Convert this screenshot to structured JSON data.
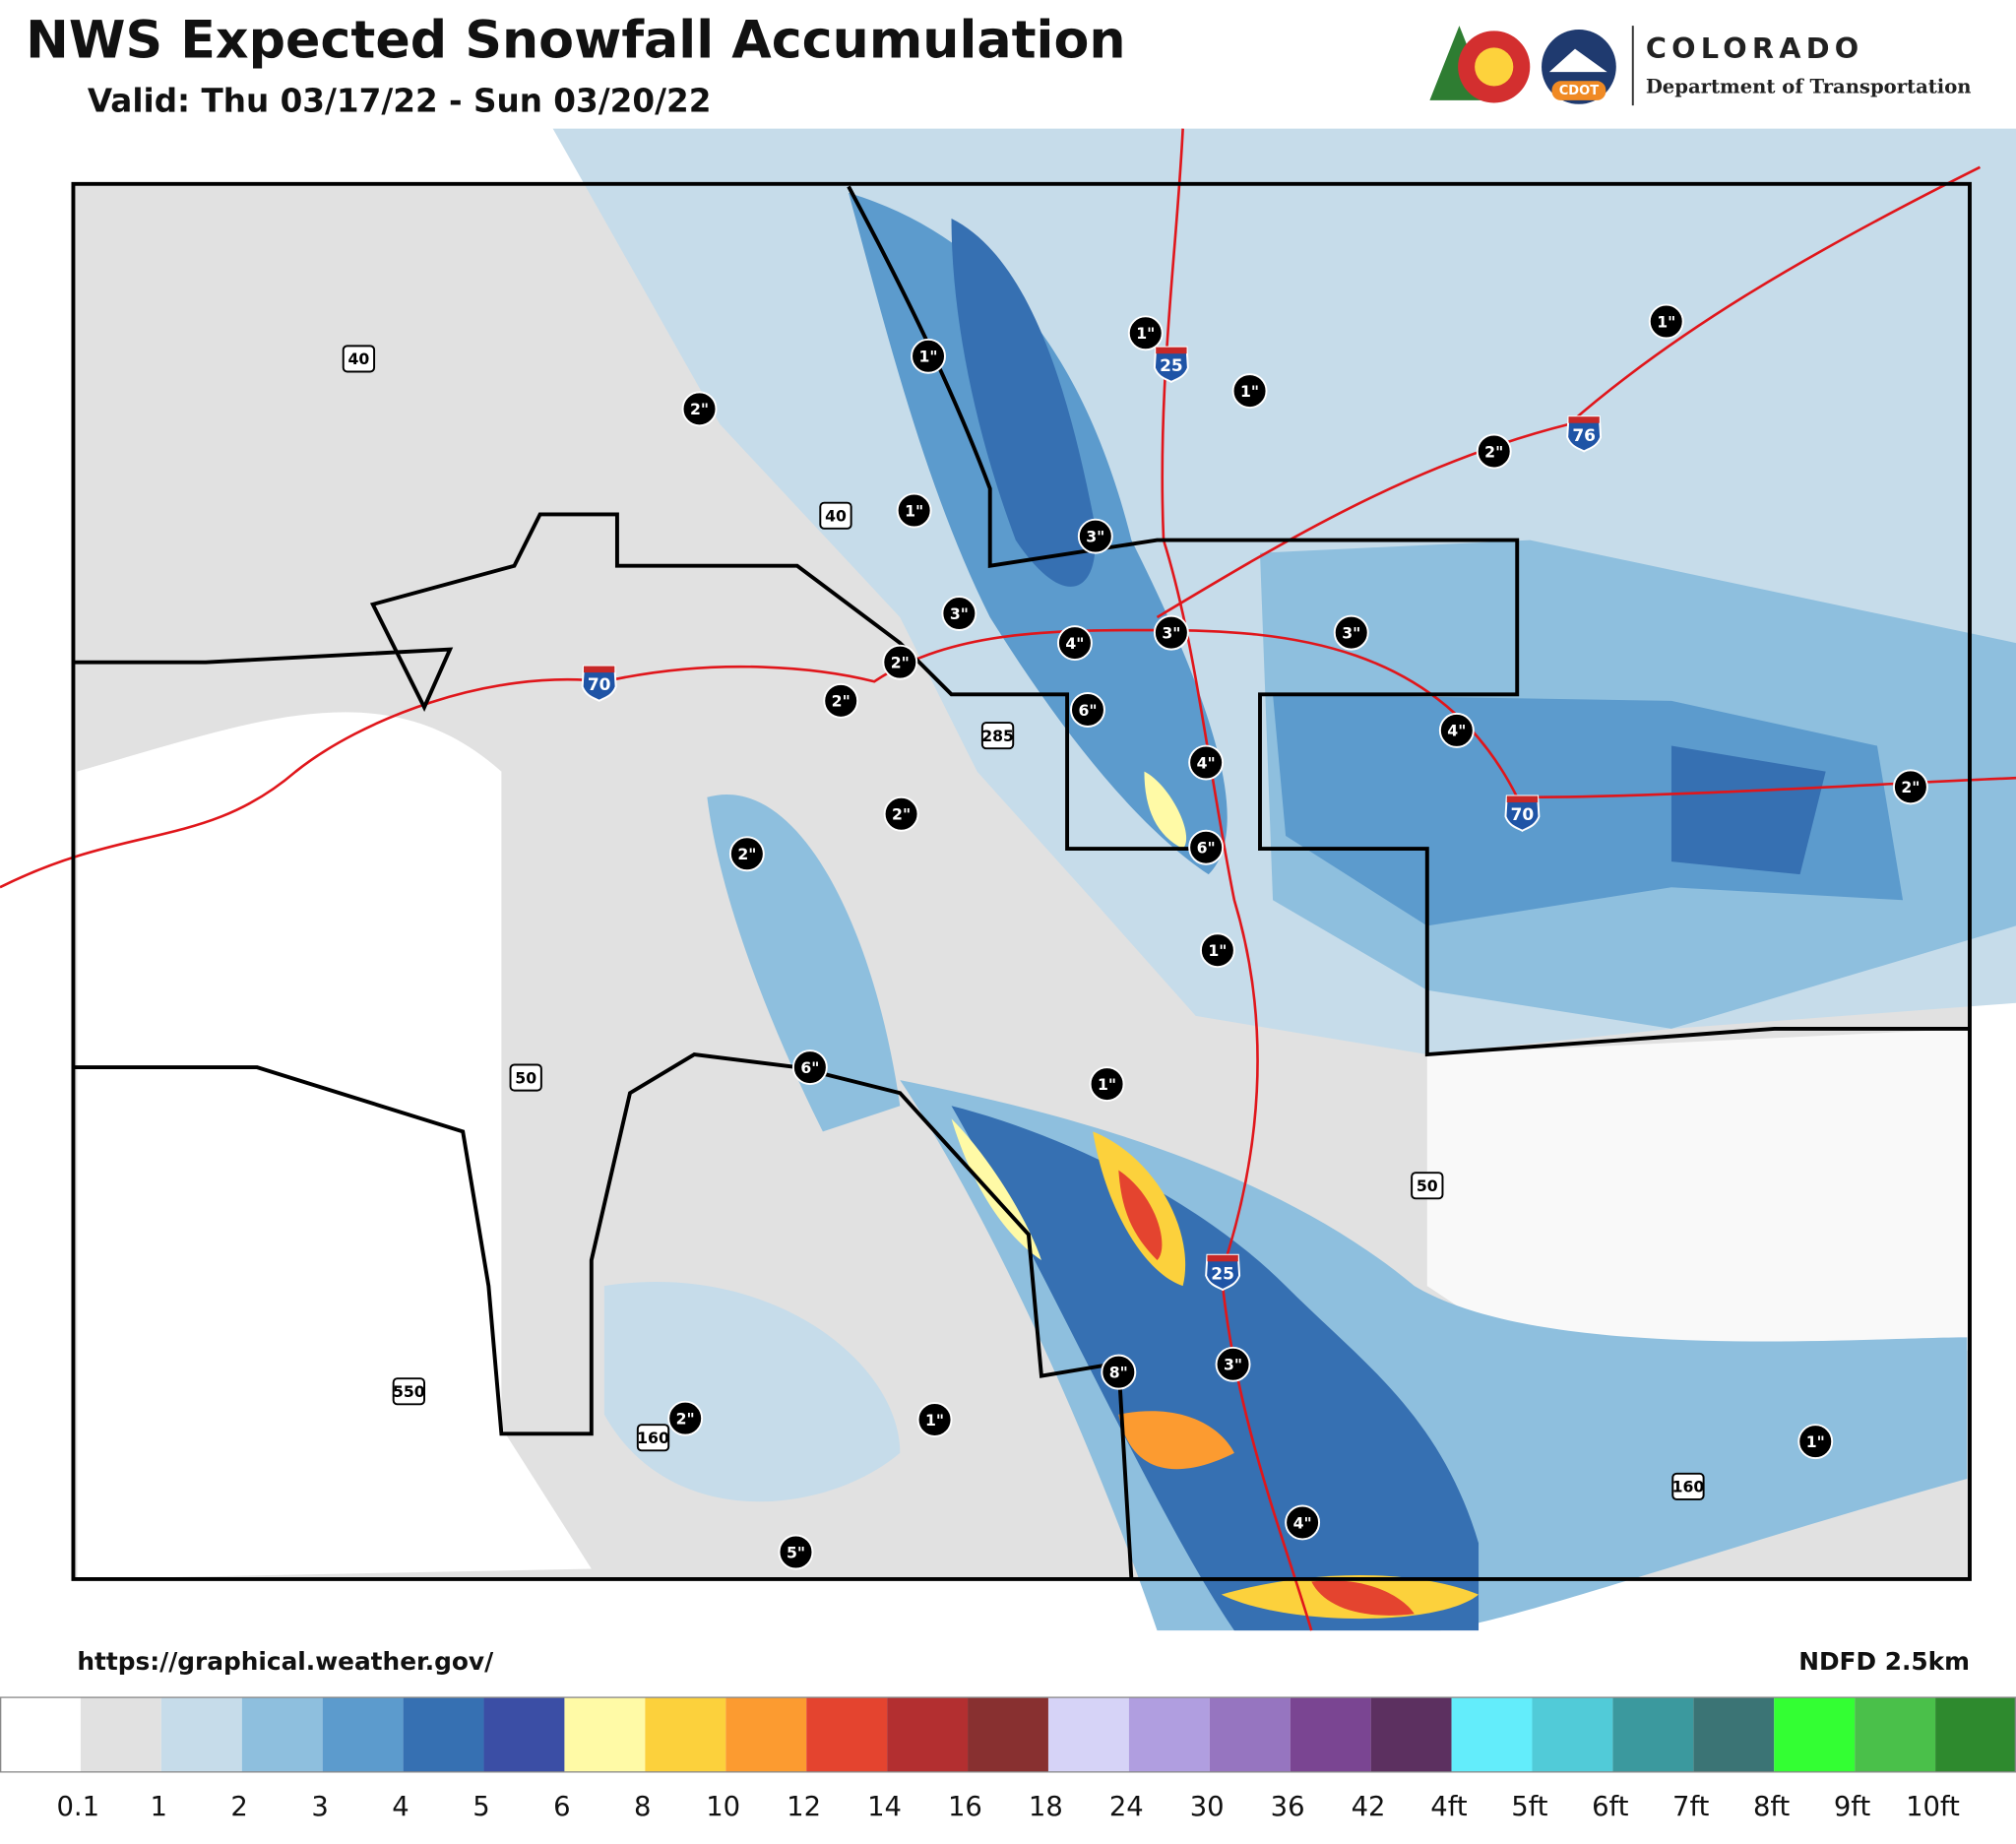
{
  "header": {
    "title": "NWS Expected Snowfall Accumulation",
    "subtitle": "Valid: Thu 03/17/22 - Sun 03/20/22"
  },
  "logo": {
    "name": "COLORADO",
    "department": "Department of Transportation",
    "badge": "CDOT"
  },
  "map": {
    "snow_labels": [
      "1\"",
      "1\"",
      "1\"",
      "1\"",
      "2\"",
      "2\"",
      "1\"",
      "3\"",
      "3\"",
      "4\"",
      "3\"",
      "3\"",
      "2\"",
      "2\"",
      "6\"",
      "4\"",
      "4\"",
      "2\"",
      "2\"",
      "6\"",
      "2\"",
      "1\"",
      "6\"",
      "1\"",
      "8\"",
      "3\"",
      "2\"",
      "1\"",
      "1\"",
      "4\"",
      "5\""
    ],
    "highways": [
      "40",
      "25",
      "76",
      "40",
      "70",
      "285",
      "70",
      "50",
      "50",
      "25",
      "550",
      "160",
      "160"
    ]
  },
  "footer": {
    "source": "https://graphical.weather.gov/",
    "model": "NDFD 2.5km"
  },
  "legend": {
    "colors": [
      "#ffffff",
      "#e1e1e1",
      "#c6dcea",
      "#8ebfde",
      "#5c9bcd",
      "#3670b2",
      "#3b4ea5",
      "#fffaa6",
      "#fcd13c",
      "#fc9b30",
      "#e4442f",
      "#b32f30",
      "#883030",
      "#d6d3f7",
      "#b09ee0",
      "#9675c0",
      "#7a4592",
      "#5c3060",
      "#63edfb",
      "#51cbd8",
      "#3b999e",
      "#3b7475",
      "#33ff33",
      "#4ac04a",
      "#2e8a2e"
    ],
    "labels": [
      "0.1",
      "1",
      "2",
      "3",
      "4",
      "5",
      "6",
      "8",
      "10",
      "12",
      "14",
      "16",
      "18",
      "24",
      "30",
      "36",
      "42",
      "4ft",
      "5ft",
      "6ft",
      "7ft",
      "8ft",
      "9ft",
      "10ft"
    ]
  }
}
